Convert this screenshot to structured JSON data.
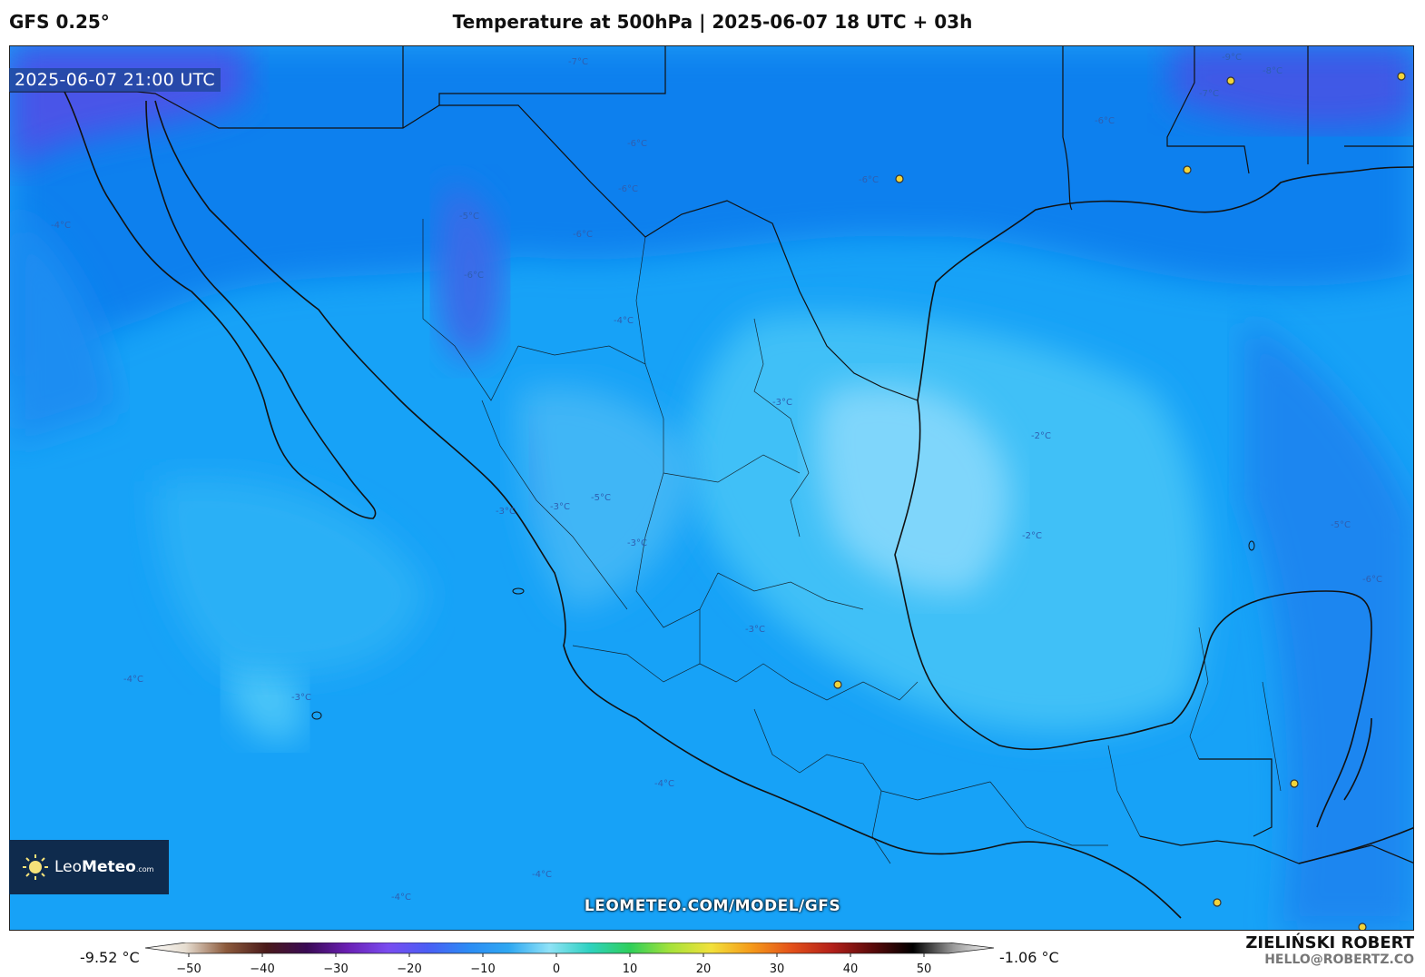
{
  "header": {
    "model": "GFS 0.25°",
    "title": "Temperature at 500hPa | 2025-06-07 18 UTC + 03h"
  },
  "map": {
    "valid_time": "2025-06-07 21:00 UTC",
    "watermark": "LEOMETEO.COM/MODEL/GFS",
    "region": "Mexico and Gulf of Mexico",
    "contour_labels": [
      "-9°C",
      "-8°C",
      "-7°C",
      "-7°C",
      "-6°C",
      "-6°C",
      "-6°C",
      "-6°C",
      "-6°C",
      "-6°C",
      "-5°C",
      "-5°C",
      "-4°C",
      "-4°C",
      "-4°C",
      "-4°C",
      "-4°C",
      "-3°C",
      "-3°C",
      "-3°C",
      "-3°C",
      "-3°C",
      "-3°C",
      "-2°C",
      "-2°C",
      "-5°C",
      "-6°C",
      "-4°C"
    ]
  },
  "logo": {
    "brand_light": "Leo",
    "brand_bold": "Meteo",
    "domain": ".com"
  },
  "legend": {
    "min_label": "-9.52 °C",
    "max_label": "-1.06 °C",
    "ticks": [
      "−50",
      "−40",
      "−30",
      "−20",
      "−10",
      "0",
      "10",
      "20",
      "30",
      "40",
      "50"
    ],
    "tick_values": [
      -50,
      -40,
      -30,
      -20,
      -10,
      0,
      10,
      20,
      30,
      40,
      50
    ],
    "colors": [
      "#ffffff",
      "#e6ddd0",
      "#8c5a3c",
      "#4a1a1a",
      "#3a0a55",
      "#6a1fb3",
      "#7a4cf0",
      "#4a5ef5",
      "#2c8cf5",
      "#2fa8f2",
      "#8fe2f7",
      "#2ed2c0",
      "#2ecf5a",
      "#a6e23a",
      "#f2e13b",
      "#f59a1a",
      "#e3501a",
      "#b3201a",
      "#5a0a0a",
      "#000000",
      "#9a9a9a",
      "#ffffff"
    ]
  },
  "author": {
    "name": "ZIELIŃSKI ROBERT",
    "email": "HELLO@ROBERTZ.CO"
  }
}
